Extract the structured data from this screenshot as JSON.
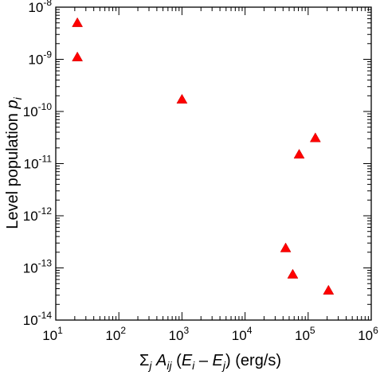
{
  "chart_data": {
    "type": "scatter",
    "xscale": "log",
    "yscale": "log",
    "xlim": [
      10,
      1000000
    ],
    "ylim": [
      1e-14,
      1e-08
    ],
    "x_ticks": [
      {
        "base": "10",
        "exp": "1"
      },
      {
        "base": "10",
        "exp": "2"
      },
      {
        "base": "10",
        "exp": "3"
      },
      {
        "base": "10",
        "exp": "4"
      },
      {
        "base": "10",
        "exp": "5"
      },
      {
        "base": "10",
        "exp": "6"
      }
    ],
    "y_ticks": [
      {
        "base": "10",
        "exp": "-14"
      },
      {
        "base": "10",
        "exp": "-13"
      },
      {
        "base": "10",
        "exp": "-12"
      },
      {
        "base": "10",
        "exp": "-11"
      },
      {
        "base": "10",
        "exp": "-10"
      },
      {
        "base": "10",
        "exp": "-9"
      },
      {
        "base": "10",
        "exp": "-8"
      }
    ],
    "xlabel": {
      "sigma": "Σ",
      "sub_j": "j",
      "A": "A",
      "sub_ij": "ij",
      "open": "(",
      "E1": "E",
      "sub_i": "i",
      "minus": "–",
      "E2": "E",
      "sub_j2": "j",
      "close": ")",
      "units": "(erg/s)"
    },
    "ylabel": {
      "text": "Level population",
      "p": "p",
      "sub": "i"
    },
    "marker_color": "#ff0000",
    "marker_shape": "triangle",
    "series": [
      {
        "points": [
          {
            "x": 22,
            "y": 5e-09
          },
          {
            "x": 22,
            "y": 1.1e-09
          },
          {
            "x": 1000,
            "y": 1.7e-10
          },
          {
            "x": 130000,
            "y": 3.1e-11
          },
          {
            "x": 72000,
            "y": 1.5e-11
          },
          {
            "x": 44000,
            "y": 2.4e-13
          },
          {
            "x": 57000,
            "y": 7.5e-14
          },
          {
            "x": 210000,
            "y": 3.7e-14
          }
        ]
      }
    ]
  }
}
